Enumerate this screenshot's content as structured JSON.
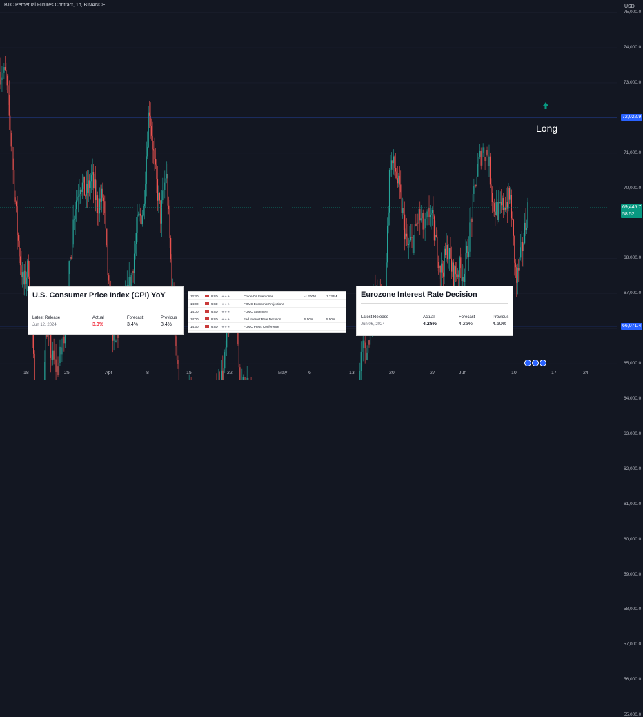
{
  "header": {
    "title": "BTC Perpetual Futures Contract, 1h, BINANCE"
  },
  "axis": {
    "currency": "USD",
    "y_ticks": [
      "75,000.0",
      "74,000.0",
      "73,000.0",
      "72,000.0",
      "71,000.0",
      "70,000.0",
      "68,000.0",
      "67,000.0",
      "66,000.0",
      "65,000.0",
      "64,000.0",
      "63,000.0",
      "62,000.0",
      "61,000.0",
      "60,000.0",
      "59,000.0",
      "58,000.0",
      "57,000.0",
      "56,000.0",
      "55,000.0"
    ],
    "x_ticks": [
      "18",
      "25",
      "Apr",
      "8",
      "15",
      "22",
      "May",
      "6",
      "13",
      "20",
      "27",
      "Jun",
      "10",
      "17",
      "24"
    ]
  },
  "price_tags": {
    "resistance": "72,022.9",
    "support": "66,071.4",
    "last_price": "69,445.7",
    "countdown": "58:52"
  },
  "annotation": {
    "label": "Long"
  },
  "cpi_card": {
    "title": "U.S. Consumer Price Index (CPI) YoY",
    "latest_release_label": "Latest Release",
    "latest_release": "Jun 12, 2024",
    "actual_label": "Actual",
    "actual": "3.3%",
    "forecast_label": "Forecast",
    "forecast": "3.4%",
    "previous_label": "Previous",
    "previous": "3.4%"
  },
  "ecb_card": {
    "title": "Eurozone Interest Rate Decision",
    "latest_release_label": "Latest Release",
    "latest_release": "Jun 06, 2024",
    "actual_label": "Actual",
    "actual": "4.25%",
    "forecast_label": "Forecast",
    "forecast": "4.25%",
    "previous_label": "Previous",
    "previous": "4.50%"
  },
  "calendar": [
    {
      "time": "12:30",
      "cur": "USD",
      "event": "Crude Oil Inventories",
      "a": "-1.200M",
      "b": "1.233M"
    },
    {
      "time": "14:00",
      "cur": "USD",
      "event": "FOMC Economic Projections",
      "a": "",
      "b": ""
    },
    {
      "time": "14:00",
      "cur": "USD",
      "event": "FOMC Statement",
      "a": "",
      "b": ""
    },
    {
      "time": "14:00",
      "cur": "USD",
      "event": "Fed Interest Rate Decision",
      "a": "5.50%",
      "b": "5.50%"
    },
    {
      "time": "14:30",
      "cur": "USD",
      "event": "FOMC Press Conference",
      "a": "",
      "b": ""
    }
  ],
  "colors": {
    "bg": "#131722",
    "up": "#26a69a",
    "down": "#ef5350",
    "level": "#2962ff",
    "arrow": "#089981"
  },
  "chart_data": {
    "type": "candlestick",
    "title": "BTC Perpetual Futures Contract, 1h, BINANCE",
    "ylim": [
      54500,
      75500
    ],
    "levels": [
      72022.9,
      66071.4
    ],
    "last": 69445.7,
    "path": [
      {
        "x": "Mar 13",
        "y": 73300
      },
      {
        "x": "Mar 14",
        "y": 73200
      },
      {
        "x": "Mar 15",
        "y": 71200
      },
      {
        "x": "Mar 16",
        "y": 68800
      },
      {
        "x": "Mar 17",
        "y": 67200
      },
      {
        "x": "Mar 18",
        "y": 67800
      },
      {
        "x": "Mar 19",
        "y": 64500
      },
      {
        "x": "Mar 20",
        "y": 62000
      },
      {
        "x": "Mar 21",
        "y": 66200
      },
      {
        "x": "Mar 22",
        "y": 65200
      },
      {
        "x": "Mar 23",
        "y": 64800
      },
      {
        "x": "Mar 24",
        "y": 65600
      },
      {
        "x": "Mar 25",
        "y": 67500
      },
      {
        "x": "Mar 26",
        "y": 69500
      },
      {
        "x": "Mar 27",
        "y": 70200
      },
      {
        "x": "Mar 28",
        "y": 69800
      },
      {
        "x": "Mar 29",
        "y": 70300
      },
      {
        "x": "Mar 30",
        "y": 69500
      },
      {
        "x": "Mar 31",
        "y": 69800
      },
      {
        "x": "Apr 1",
        "y": 67000
      },
      {
        "x": "Apr 2",
        "y": 65400
      },
      {
        "x": "Apr 3",
        "y": 66300
      },
      {
        "x": "Apr 4",
        "y": 66800
      },
      {
        "x": "Apr 5",
        "y": 67600
      },
      {
        "x": "Apr 6",
        "y": 69000
      },
      {
        "x": "Apr 7",
        "y": 69400
      },
      {
        "x": "Apr 8",
        "y": 72400
      },
      {
        "x": "Apr 9",
        "y": 70500
      },
      {
        "x": "Apr 10",
        "y": 69200
      },
      {
        "x": "Apr 11",
        "y": 70500
      },
      {
        "x": "Apr 12",
        "y": 67200
      },
      {
        "x": "Apr 13",
        "y": 64800
      },
      {
        "x": "Apr 14",
        "y": 63200
      },
      {
        "x": "Apr 15",
        "y": 64200
      },
      {
        "x": "Apr 16",
        "y": 63300
      },
      {
        "x": "Apr 17",
        "y": 61400
      },
      {
        "x": "Apr 18",
        "y": 62800
      },
      {
        "x": "Apr 19",
        "y": 63500
      },
      {
        "x": "Apr 20",
        "y": 64300
      },
      {
        "x": "Apr 21",
        "y": 64800
      },
      {
        "x": "Apr 22",
        "y": 66300
      },
      {
        "x": "Apr 23",
        "y": 66700
      },
      {
        "x": "Apr 24",
        "y": 64400
      },
      {
        "x": "Apr 25",
        "y": 64300
      },
      {
        "x": "Apr 26",
        "y": 63800
      },
      {
        "x": "Apr 27",
        "y": 63500
      },
      {
        "x": "Apr 28",
        "y": 63100
      },
      {
        "x": "Apr 29",
        "y": 63600
      },
      {
        "x": "Apr 30",
        "y": 60800
      },
      {
        "x": "May 1",
        "y": 57500
      },
      {
        "x": "May 2",
        "y": 58800
      },
      {
        "x": "May 3",
        "y": 61500
      },
      {
        "x": "May 4",
        "y": 63500
      },
      {
        "x": "May 5",
        "y": 64000
      },
      {
        "x": "May 6",
        "y": 63300
      },
      {
        "x": "May 7",
        "y": 63200
      },
      {
        "x": "May 8",
        "y": 61700
      },
      {
        "x": "May 9",
        "y": 62700
      },
      {
        "x": "May 10",
        "y": 61800
      },
      {
        "x": "May 11",
        "y": 60900
      },
      {
        "x": "May 12",
        "y": 61400
      },
      {
        "x": "May 13",
        "y": 62800
      },
      {
        "x": "May 14",
        "y": 61600
      },
      {
        "x": "May 15",
        "y": 65600
      },
      {
        "x": "May 16",
        "y": 65300
      },
      {
        "x": "May 17",
        "y": 66800
      },
      {
        "x": "May 18",
        "y": 67000
      },
      {
        "x": "May 19",
        "y": 66500
      },
      {
        "x": "May 20",
        "y": 70800
      },
      {
        "x": "May 21",
        "y": 70500
      },
      {
        "x": "May 22",
        "y": 69500
      },
      {
        "x": "May 23",
        "y": 68300
      },
      {
        "x": "May 24",
        "y": 68500
      },
      {
        "x": "May 25",
        "y": 69200
      },
      {
        "x": "May 26",
        "y": 68800
      },
      {
        "x": "May 27",
        "y": 69400
      },
      {
        "x": "May 28",
        "y": 68400
      },
      {
        "x": "May 29",
        "y": 67600
      },
      {
        "x": "May 30",
        "y": 68300
      },
      {
        "x": "May 31",
        "y": 67500
      },
      {
        "x": "Jun 1",
        "y": 67700
      },
      {
        "x": "Jun 2",
        "y": 67600
      },
      {
        "x": "Jun 3",
        "y": 68900
      },
      {
        "x": "Jun 4",
        "y": 70300
      },
      {
        "x": "Jun 5",
        "y": 71100
      },
      {
        "x": "Jun 6",
        "y": 71000
      },
      {
        "x": "Jun 7",
        "y": 69500
      },
      {
        "x": "Jun 8",
        "y": 69300
      },
      {
        "x": "Jun 9",
        "y": 69600
      },
      {
        "x": "Jun 10",
        "y": 69700
      },
      {
        "x": "Jun 11",
        "y": 67300
      },
      {
        "x": "Jun 12",
        "y": 68200
      },
      {
        "x": "Jun 12",
        "y": 69445.7
      }
    ]
  }
}
